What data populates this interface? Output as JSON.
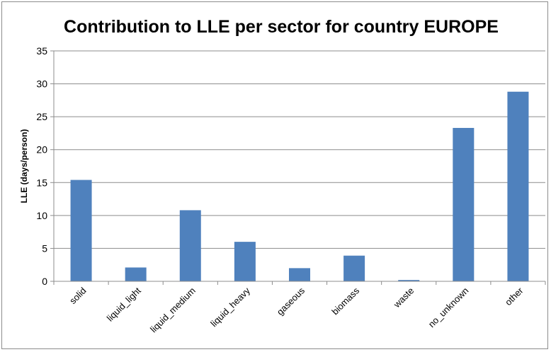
{
  "chart_data": {
    "type": "bar",
    "title": "Contribution to LLE per sector for country EUROPE",
    "xlabel": "",
    "ylabel": "LLE (days/person)",
    "categories": [
      "solid",
      "liquid_light",
      "liquid_medium",
      "liquid_heavy",
      "gaseous",
      "biomass",
      "waste",
      "no_unknown",
      "other"
    ],
    "values": [
      15.4,
      2.1,
      10.8,
      6.0,
      2.0,
      3.9,
      0.2,
      23.3,
      28.8
    ],
    "ylim": [
      0,
      35
    ],
    "yticks": [
      "0",
      "5",
      "10",
      "15",
      "20",
      "25",
      "30",
      "35"
    ],
    "grid": true,
    "bar_color": "#4f81bd"
  }
}
